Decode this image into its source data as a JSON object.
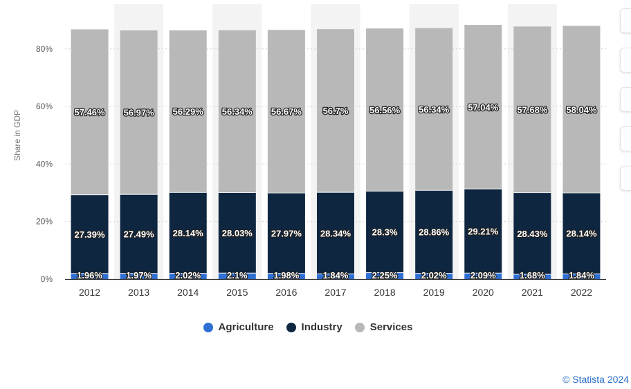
{
  "chart_data": {
    "type": "bar",
    "stacked": true,
    "categories": [
      "2012",
      "2013",
      "2014",
      "2015",
      "2016",
      "2017",
      "2018",
      "2019",
      "2020",
      "2021",
      "2022"
    ],
    "series": [
      {
        "name": "Agriculture",
        "color": "#2f6fd4",
        "values": [
          1.96,
          1.97,
          2.02,
          2.1,
          1.98,
          1.84,
          2.25,
          2.02,
          2.09,
          1.68,
          1.84
        ],
        "labels": [
          "1.96%",
          "1.97%",
          "2.02%",
          "2.1%",
          "1.98%",
          "1.84%",
          "2.25%",
          "2.02%",
          "2.09%",
          "1.68%",
          "1.84%"
        ]
      },
      {
        "name": "Industry",
        "color": "#0f2640",
        "values": [
          27.39,
          27.49,
          28.14,
          28.03,
          27.97,
          28.34,
          28.3,
          28.86,
          29.21,
          28.43,
          28.14
        ],
        "labels": [
          "27.39%",
          "27.49%",
          "28.14%",
          "28.03%",
          "27.97%",
          "28.34%",
          "28.3%",
          "28.86%",
          "29.21%",
          "28.43%",
          "28.14%"
        ]
      },
      {
        "name": "Services",
        "color": "#b8b8b8",
        "values": [
          57.46,
          56.97,
          56.29,
          56.34,
          56.67,
          56.7,
          56.56,
          56.34,
          57.04,
          57.68,
          58.04
        ],
        "labels": [
          "57.46%",
          "56.97%",
          "56.29%",
          "56.34%",
          "56.67%",
          "56.7%",
          "56.56%",
          "56.34%",
          "57.04%",
          "57.68%",
          "58.04%"
        ]
      }
    ],
    "ylabel": "Share in GDP",
    "ylim": [
      0,
      90
    ],
    "yticks": [
      0,
      20,
      40,
      60,
      80
    ],
    "ytick_labels": [
      "0%",
      "20%",
      "40%",
      "60%",
      "80%"
    ],
    "grid": true,
    "legend_position": "bottom"
  },
  "credit": "© Statista 2024"
}
